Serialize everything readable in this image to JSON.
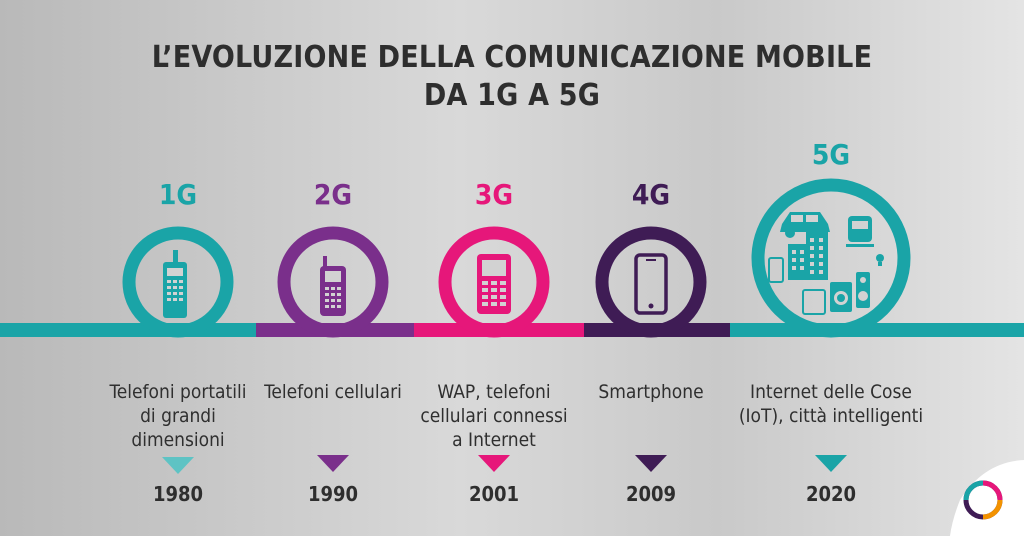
{
  "title_line1": "L’EVOLUZIONE DELLA COMUNICAZIONE MOBILE",
  "title_line2": "DA 1G A 5G",
  "colors": {
    "gen1": "#1aa4a7",
    "gen2": "#7a2f8b",
    "gen3": "#e6177a",
    "gen4": "#3f1c55",
    "gen5": "#1aa4a7",
    "gen1_triangle": "#5ec3c4"
  },
  "generations": [
    {
      "label": "1G",
      "description": [
        "Telefoni portatili",
        "di grandi",
        "dimensioni"
      ],
      "year": "1980",
      "icon": "brick-phone-icon"
    },
    {
      "label": "2G",
      "description": [
        "Telefoni cellulari"
      ],
      "year": "1990",
      "icon": "cell-phone-icon"
    },
    {
      "label": "3G",
      "description": [
        "WAP, telefoni",
        "cellulari connessi",
        "a Internet"
      ],
      "year": "2001",
      "icon": "internet-phone-icon"
    },
    {
      "label": "4G",
      "description": [
        "Smartphone"
      ],
      "year": "2009",
      "icon": "smartphone-icon"
    },
    {
      "label": "5G",
      "description": [
        "Internet delle Cose",
        "(IoT), città intelligenti"
      ],
      "year": "2020",
      "icon": "iot-city-icon"
    }
  ]
}
